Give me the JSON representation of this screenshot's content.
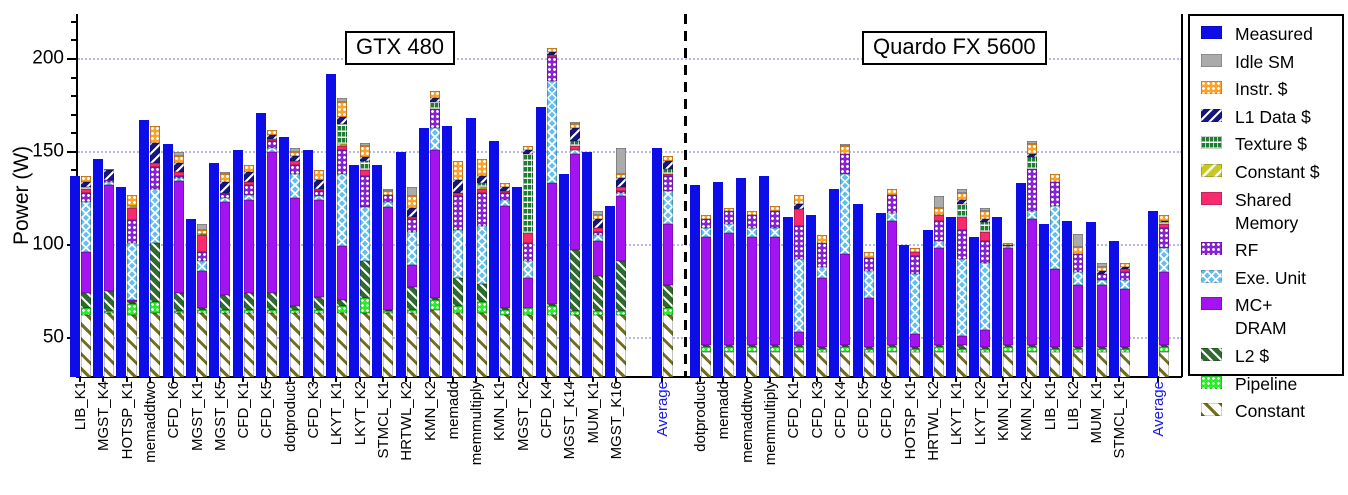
{
  "ylabel_text": "Power (W)",
  "legend": [
    {
      "key": "measured",
      "label": "Measured",
      "color": "#0d0de8"
    },
    {
      "key": "idle_sm",
      "label": "Idle SM",
      "color": "#ababab"
    },
    {
      "key": "instr",
      "label": "Instr. $",
      "color": "#ffa126"
    },
    {
      "key": "l1",
      "label": "L1 Data $",
      "color": "#16167d"
    },
    {
      "key": "texture",
      "label": "Texture $",
      "color": "#1e7d33"
    },
    {
      "key": "constant_cache",
      "label": "Constant $",
      "color": "#c9c920"
    },
    {
      "key": "shared",
      "label": "Shared",
      "label2": "Memory",
      "color": "#f92a6e"
    },
    {
      "key": "rf",
      "label": "RF",
      "color": "#8b20d9"
    },
    {
      "key": "exe",
      "label": "Exe. Unit",
      "color": "#5ec1f2"
    },
    {
      "key": "mc_dram",
      "label": "MC+",
      "label2": "DRAM",
      "color": "#a414f0"
    },
    {
      "key": "l2",
      "label": "L2 $",
      "color": "#2e6b2e"
    },
    {
      "key": "pipeline",
      "label": "Pipeline",
      "color": "#2aee2a"
    },
    {
      "key": "constant",
      "label": "Constant",
      "color": "#6f6f1f"
    }
  ],
  "chart_data": {
    "type": "bar",
    "subtype": "grouped-measured-vs-stacked-model",
    "title": "",
    "xlabel": "",
    "ylabel": "Power (W)",
    "ylim": [
      30,
      225
    ],
    "yticks": [
      50,
      100,
      150,
      200
    ],
    "grid": "dotted horizontal at 50/100/150/200",
    "legend_position": "right",
    "average_label_color": "#1a1aee",
    "stack_order_bottom_to_top": [
      "constant",
      "pipeline",
      "l2",
      "mc_dram",
      "exe",
      "rf",
      "shared",
      "constant_cache",
      "texture",
      "l1",
      "instr",
      "idle_sm"
    ],
    "groups": [
      {
        "name": "GTX 480",
        "benchmarks": [
          {
            "label": "LIB_K1",
            "measured": 137,
            "components": {
              "constant": 62,
              "pipeline": 4,
              "l2": 8,
              "mc_dram": 22,
              "exe": 27,
              "rf": 5,
              "shared": 2,
              "texture": 1,
              "l1": 3,
              "instr": 3
            }
          },
          {
            "label": "MGST_K4",
            "measured": 146,
            "components": {
              "constant": 63,
              "pipeline": 1,
              "l2": 11,
              "mc_dram": 57,
              "exe": 2,
              "rf": 1,
              "l1": 5,
              "instr": 1
            }
          },
          {
            "label": "HOTSP_K1",
            "measured": 131,
            "components": {
              "constant": 62,
              "pipeline": 6,
              "l2": 1,
              "mc_dram": 1,
              "exe": 31,
              "rf": 12,
              "shared": 7,
              "constant_cache": 1,
              "instr": 6
            }
          },
          {
            "label": "memaddtwo",
            "measured": 167,
            "components": {
              "constant": 63,
              "pipeline": 6,
              "l2": 32,
              "exe": 29,
              "rf": 12,
              "shared": 2,
              "l1": 11,
              "instr": 9
            }
          },
          {
            "label": "CFD_K6",
            "measured": 154,
            "components": {
              "constant": 63,
              "pipeline": 1,
              "l2": 10,
              "mc_dram": 60,
              "exe": 2,
              "rf": 1,
              "shared": 2,
              "l1": 5,
              "instr": 4,
              "idle_sm": 2
            }
          },
          {
            "label": "MGST_K1",
            "measured": 114,
            "components": {
              "constant": 63,
              "pipeline": 2,
              "l2": 1,
              "mc_dram": 20,
              "exe": 5,
              "rf": 5,
              "shared": 9,
              "constant_cache": 1,
              "instr": 2,
              "idle_sm": 3
            }
          },
          {
            "label": "MGST_K5",
            "measured": 144,
            "components": {
              "constant": 63,
              "pipeline": 2,
              "l2": 8,
              "mc_dram": 50,
              "exe": 2,
              "rf": 2,
              "shared": 1,
              "l1": 6,
              "instr": 4,
              "idle_sm": 1
            }
          },
          {
            "label": "CFD_K1",
            "measured": 151,
            "components": {
              "constant": 63,
              "pipeline": 2,
              "l2": 9,
              "mc_dram": 50,
              "exe": 3,
              "rf": 5,
              "shared": 2,
              "l1": 5,
              "instr": 4
            }
          },
          {
            "label": "CFD_K5",
            "measured": 171,
            "components": {
              "constant": 63,
              "pipeline": 2,
              "l2": 9,
              "mc_dram": 76,
              "exe": 2,
              "rf": 4,
              "shared": 1,
              "l1": 2,
              "instr": 3
            }
          },
          {
            "label": "dotproduct",
            "measured": 158,
            "components": {
              "constant": 63,
              "pipeline": 2,
              "l2": 2,
              "mc_dram": 58,
              "exe": 13,
              "rf": 5,
              "shared": 2,
              "l1": 3,
              "instr": 2,
              "idle_sm": 2
            }
          },
          {
            "label": "CFD_K3",
            "measured": 151,
            "components": {
              "constant": 63,
              "pipeline": 2,
              "l2": 7,
              "mc_dram": 52,
              "exe": 2,
              "rf": 3,
              "shared": 1,
              "l1": 5,
              "instr": 5
            }
          },
          {
            "label": "LKYT_K1",
            "measured": 192,
            "components": {
              "constant": 63,
              "pipeline": 4,
              "l2": 3,
              "mc_dram": 29,
              "exe": 39,
              "rf": 13,
              "shared": 2,
              "constant_cache": 1,
              "texture": 11,
              "l1": 4,
              "instr": 8,
              "idle_sm": 2
            }
          },
          {
            "label": "LKYT_K2",
            "measured": 143,
            "components": {
              "constant": 63,
              "pipeline": 8,
              "l2": 20,
              "exe": 29,
              "rf": 17,
              "shared": 3,
              "texture": 5,
              "l1": 2,
              "instr": 6,
              "idle_sm": 2
            }
          },
          {
            "label": "STMCL_K1",
            "measured": 143,
            "components": {
              "constant": 63,
              "pipeline": 1,
              "l2": 1,
              "mc_dram": 55,
              "exe": 3,
              "rf": 4,
              "instr": 2,
              "idle_sm": 1
            }
          },
          {
            "label": "HRTWL_K2",
            "measured": 150,
            "components": {
              "constant": 63,
              "pipeline": 2,
              "l2": 12,
              "mc_dram": 12,
              "exe": 18,
              "rf": 7,
              "shared": 1,
              "l1": 5,
              "instr": 6,
              "idle_sm": 5
            }
          },
          {
            "label": "KMN_K2",
            "measured": 163,
            "components": {
              "constant": 65,
              "pipeline": 5,
              "l2": 1,
              "mc_dram": 80,
              "exe": 12,
              "rf": 10,
              "texture": 4,
              "l1": 2,
              "instr": 4
            }
          },
          {
            "label": "memadd",
            "measured": 164,
            "components": {
              "constant": 63,
              "pipeline": 4,
              "l2": 15,
              "exe": 26,
              "rf": 18,
              "shared": 2,
              "l1": 7,
              "instr": 10
            }
          },
          {
            "label": "memmultiply",
            "measured": 168,
            "components": {
              "constant": 63,
              "pipeline": 6,
              "l2": 10,
              "exe": 31,
              "rf": 18,
              "shared": 2,
              "constant_cache": 1,
              "texture": 2,
              "l1": 4,
              "instr": 9
            }
          },
          {
            "label": "KMN_K1",
            "measured": 156,
            "components": {
              "constant": 62,
              "pipeline": 3,
              "l2": 1,
              "mc_dram": 55,
              "exe": 3,
              "rf": 4,
              "shared": 1,
              "l1": 2,
              "instr": 2
            }
          },
          {
            "label": "MGST_K2",
            "measured": 131,
            "components": {
              "constant": 62,
              "pipeline": 4,
              "mc_dram": 16,
              "exe": 9,
              "rf": 10,
              "shared": 5,
              "texture": 43,
              "l1": 2,
              "instr": 2
            }
          },
          {
            "label": "CFD_K4",
            "measured": 174,
            "components": {
              "constant": 62,
              "pipeline": 5,
              "l2": 1,
              "mc_dram": 65,
              "exe": 55,
              "rf": 13,
              "shared": 1,
              "l1": 2,
              "instr": 2
            }
          },
          {
            "label": "MGST_K14",
            "measured": 138,
            "components": {
              "constant": 62,
              "pipeline": 2,
              "l2": 33,
              "mc_dram": 52,
              "exe": 2,
              "shared": 2,
              "texture": 3,
              "l1": 7,
              "instr": 2,
              "idle_sm": 1
            }
          },
          {
            "label": "MUM_K1",
            "measured": 150,
            "components": {
              "constant": 62,
              "pipeline": 2,
              "l2": 19,
              "mc_dram": 19,
              "exe": 3,
              "rf": 2,
              "shared": 2,
              "l1": 5,
              "instr": 2,
              "idle_sm": 2
            }
          },
          {
            "label": "MGST_K16",
            "measured": 121,
            "components": {
              "constant": 62,
              "pipeline": 2,
              "l2": 27,
              "mc_dram": 35,
              "exe": 2,
              "rf": 1,
              "shared": 2,
              "l1": 5,
              "instr": 2,
              "idle_sm": 14
            }
          },
          {
            "label": "Average",
            "is_average": true,
            "measured": 152,
            "components": {
              "constant": 62,
              "pipeline": 4,
              "l2": 12,
              "mc_dram": 33,
              "exe": 18,
              "rf": 8,
              "shared": 1,
              "texture": 3,
              "l1": 4,
              "instr": 3
            }
          }
        ]
      },
      {
        "name": "Quardo FX 5600",
        "benchmarks": [
          {
            "label": "dotproduct",
            "measured": 132,
            "components": {
              "constant": 42,
              "pipeline": 3,
              "l2": 1,
              "mc_dram": 58,
              "exe": 5,
              "rf": 5,
              "instr": 2
            }
          },
          {
            "label": "memadd",
            "measured": 134,
            "components": {
              "constant": 42,
              "pipeline": 3,
              "l2": 1,
              "mc_dram": 60,
              "exe": 5,
              "rf": 7,
              "instr": 2
            }
          },
          {
            "label": "memaddtwo",
            "measured": 136,
            "components": {
              "constant": 42,
              "pipeline": 3,
              "l2": 1,
              "mc_dram": 58,
              "exe": 5,
              "rf": 7,
              "instr": 2
            }
          },
          {
            "label": "memmultiply",
            "measured": 137,
            "components": {
              "constant": 42,
              "pipeline": 3,
              "l2": 1,
              "mc_dram": 58,
              "exe": 5,
              "rf": 9,
              "instr": 3
            }
          },
          {
            "label": "CFD_K1",
            "measured": 115,
            "components": {
              "constant": 42,
              "pipeline": 3,
              "l2": 1,
              "mc_dram": 7,
              "exe": 39,
              "rf": 18,
              "shared": 9,
              "l1": 3,
              "instr": 5
            }
          },
          {
            "label": "CFD_K3",
            "measured": 116,
            "components": {
              "constant": 42,
              "pipeline": 2,
              "l2": 1,
              "mc_dram": 37,
              "exe": 6,
              "rf": 13,
              "instr": 4
            }
          },
          {
            "label": "CFD_K4",
            "measured": 130,
            "components": {
              "constant": 42,
              "pipeline": 3,
              "l2": 1,
              "mc_dram": 49,
              "exe": 43,
              "rf": 11,
              "instr": 4,
              "idle_sm": 1
            }
          },
          {
            "label": "CFD_K5",
            "measured": 122,
            "components": {
              "constant": 42,
              "pipeline": 2,
              "l2": 1,
              "mc_dram": 26,
              "exe": 15,
              "rf": 7,
              "instr": 3
            }
          },
          {
            "label": "CFD_K6",
            "measured": 117,
            "components": {
              "constant": 42,
              "pipeline": 3,
              "l2": 1,
              "mc_dram": 67,
              "exe": 4,
              "rf": 10,
              "instr": 3
            }
          },
          {
            "label": "HOTSP_K1",
            "measured": 100,
            "components": {
              "constant": 42,
              "pipeline": 2,
              "l2": 1,
              "mc_dram": 7,
              "exe": 32,
              "rf": 10,
              "shared": 2,
              "instr": 2
            }
          },
          {
            "label": "HRTWL_K2",
            "measured": 108,
            "components": {
              "constant": 42,
              "pipeline": 3,
              "l2": 1,
              "mc_dram": 52,
              "exe": 4,
              "rf": 11,
              "shared": 3,
              "instr": 4,
              "idle_sm": 6
            }
          },
          {
            "label": "LKYT_K1",
            "measured": 115,
            "components": {
              "constant": 42,
              "pipeline": 2,
              "l2": 2,
              "mc_dram": 5,
              "exe": 41,
              "rf": 16,
              "shared": 7,
              "texture": 7,
              "l1": 2,
              "instr": 4,
              "idle_sm": 2
            }
          },
          {
            "label": "LKYT_K2",
            "measured": 104,
            "components": {
              "constant": 42,
              "pipeline": 2,
              "l2": 1,
              "mc_dram": 9,
              "exe": 36,
              "rf": 12,
              "shared": 5,
              "texture": 5,
              "l1": 2,
              "instr": 4,
              "idle_sm": 2
            }
          },
          {
            "label": "KMN_K1",
            "measured": 115,
            "components": {
              "constant": 42,
              "pipeline": 3,
              "l2": 1,
              "mc_dram": 52,
              "exe": 1,
              "rf": 1,
              "instr": 1
            }
          },
          {
            "label": "KMN_K2",
            "measured": 133,
            "components": {
              "constant": 42,
              "pipeline": 3,
              "l2": 1,
              "mc_dram": 68,
              "exe": 4,
              "rf": 23,
              "texture": 6,
              "l1": 2,
              "instr": 5,
              "idle_sm": 2
            }
          },
          {
            "label": "LIB_K1",
            "measured": 111,
            "components": {
              "constant": 42,
              "pipeline": 2,
              "l2": 1,
              "mc_dram": 42,
              "exe": 34,
              "rf": 13,
              "instr": 4
            }
          },
          {
            "label": "LIB_K2",
            "measured": 113,
            "components": {
              "constant": 42,
              "pipeline": 2,
              "l2": 1,
              "mc_dram": 33,
              "exe": 7,
              "rf": 10,
              "instr": 4,
              "idle_sm": 7
            }
          },
          {
            "label": "MUM_K1",
            "measured": 112,
            "components": {
              "constant": 42,
              "pipeline": 2,
              "l2": 1,
              "mc_dram": 33,
              "exe": 3,
              "rf": 3,
              "l1": 2,
              "instr": 2,
              "idle_sm": 2
            }
          },
          {
            "label": "STMCL_K1",
            "measured": 102,
            "components": {
              "constant": 42,
              "pipeline": 2,
              "l2": 1,
              "mc_dram": 31,
              "exe": 5,
              "rf": 4,
              "shared": 2,
              "l1": 1,
              "instr": 2
            }
          },
          {
            "label": "Average",
            "is_average": true,
            "measured": 118,
            "components": {
              "constant": 42,
              "pipeline": 3,
              "l2": 1,
              "mc_dram": 39,
              "exe": 13,
              "rf": 11,
              "shared": 2,
              "texture": 1,
              "l1": 1,
              "instr": 3
            }
          }
        ]
      }
    ]
  }
}
